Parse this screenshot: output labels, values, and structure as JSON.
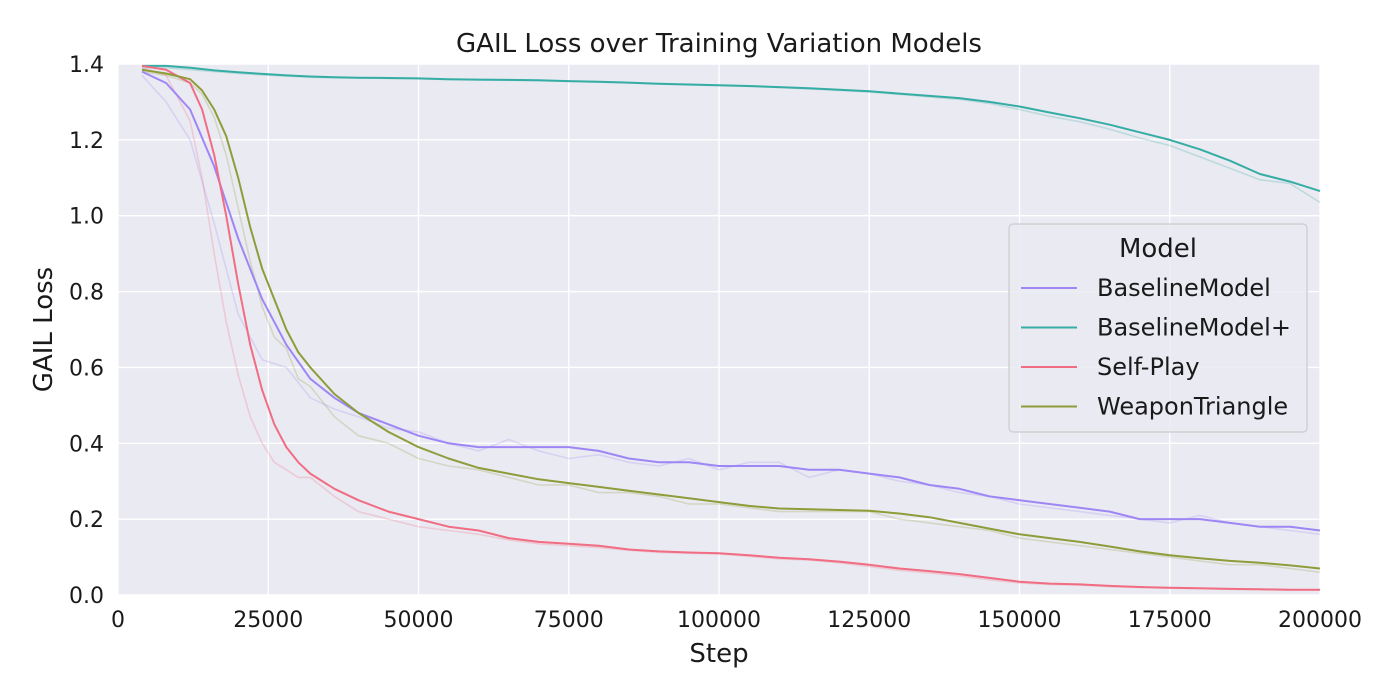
{
  "chart_data": {
    "type": "line",
    "title": "GAIL Loss over Training Variation Models",
    "xlabel": "Step",
    "ylabel": "GAIL Loss",
    "xlim": [
      0,
      200000
    ],
    "ylim": [
      0,
      1.4
    ],
    "xticks": [
      "0",
      "25000",
      "50000",
      "75000",
      "100000",
      "125000",
      "150000",
      "175000",
      "200000"
    ],
    "yticks": [
      "0.0",
      "0.2",
      "0.4",
      "0.6",
      "0.8",
      "1.0",
      "1.2",
      "1.4"
    ],
    "grid": true,
    "background": "#eaeaf2",
    "legend": {
      "title": "Model",
      "placement": "center-right"
    },
    "series": [
      {
        "name": "BaselineModel",
        "color": "#9f86f5",
        "x": [
          4000,
          8000,
          12000,
          16000,
          20000,
          24000,
          28000,
          32000,
          36000,
          40000,
          45000,
          50000,
          55000,
          60000,
          65000,
          70000,
          75000,
          80000,
          85000,
          90000,
          95000,
          100000,
          105000,
          110000,
          115000,
          120000,
          125000,
          130000,
          135000,
          140000,
          145000,
          150000,
          155000,
          160000,
          165000,
          170000,
          175000,
          180000,
          185000,
          190000,
          195000,
          200000
        ],
        "smoothed": [
          1.38,
          1.35,
          1.28,
          1.13,
          0.94,
          0.78,
          0.66,
          0.57,
          0.52,
          0.48,
          0.45,
          0.42,
          0.4,
          0.39,
          0.39,
          0.39,
          0.39,
          0.38,
          0.36,
          0.35,
          0.35,
          0.34,
          0.34,
          0.34,
          0.33,
          0.33,
          0.32,
          0.31,
          0.29,
          0.28,
          0.26,
          0.25,
          0.24,
          0.23,
          0.22,
          0.2,
          0.2,
          0.2,
          0.19,
          0.18,
          0.18,
          0.17
        ],
        "raw": [
          1.37,
          1.3,
          1.2,
          0.98,
          0.74,
          0.62,
          0.6,
          0.52,
          0.49,
          0.47,
          0.44,
          0.43,
          0.4,
          0.38,
          0.41,
          0.38,
          0.36,
          0.37,
          0.35,
          0.34,
          0.36,
          0.33,
          0.35,
          0.35,
          0.31,
          0.33,
          0.32,
          0.3,
          0.29,
          0.27,
          0.26,
          0.24,
          0.23,
          0.22,
          0.21,
          0.2,
          0.19,
          0.21,
          0.19,
          0.18,
          0.17,
          0.16
        ]
      },
      {
        "name": "BaselineModel+",
        "color": "#36ada4",
        "x": [
          4000,
          8000,
          12000,
          16000,
          20000,
          24000,
          28000,
          32000,
          36000,
          40000,
          45000,
          50000,
          55000,
          60000,
          65000,
          70000,
          75000,
          80000,
          85000,
          90000,
          95000,
          100000,
          105000,
          110000,
          115000,
          120000,
          125000,
          130000,
          135000,
          140000,
          145000,
          150000,
          155000,
          160000,
          165000,
          170000,
          175000,
          180000,
          185000,
          190000,
          195000,
          200000
        ],
        "smoothed": [
          1.395,
          1.395,
          1.39,
          1.383,
          1.378,
          1.374,
          1.37,
          1.367,
          1.365,
          1.364,
          1.363,
          1.362,
          1.36,
          1.359,
          1.358,
          1.357,
          1.355,
          1.353,
          1.351,
          1.348,
          1.346,
          1.344,
          1.342,
          1.339,
          1.336,
          1.332,
          1.328,
          1.322,
          1.316,
          1.31,
          1.3,
          1.288,
          1.272,
          1.257,
          1.24,
          1.22,
          1.2,
          1.175,
          1.145,
          1.11,
          1.09,
          1.065
        ],
        "raw": [
          1.39,
          1.39,
          1.385,
          1.38,
          1.375,
          1.371,
          1.368,
          1.365,
          1.364,
          1.363,
          1.362,
          1.361,
          1.359,
          1.358,
          1.357,
          1.356,
          1.354,
          1.352,
          1.35,
          1.347,
          1.345,
          1.343,
          1.341,
          1.338,
          1.334,
          1.33,
          1.326,
          1.32,
          1.313,
          1.307,
          1.296,
          1.28,
          1.262,
          1.248,
          1.228,
          1.205,
          1.185,
          1.155,
          1.125,
          1.095,
          1.085,
          1.035
        ]
      },
      {
        "name": "Self-Play",
        "color": "#f16d83",
        "x": [
          4000,
          8000,
          12000,
          14000,
          16000,
          18000,
          20000,
          22000,
          24000,
          26000,
          28000,
          30000,
          32000,
          36000,
          40000,
          45000,
          50000,
          55000,
          60000,
          65000,
          70000,
          75000,
          80000,
          85000,
          90000,
          95000,
          100000,
          105000,
          110000,
          115000,
          120000,
          125000,
          130000,
          135000,
          140000,
          145000,
          150000,
          155000,
          160000,
          165000,
          170000,
          175000,
          180000,
          185000,
          190000,
          195000,
          200000
        ],
        "smoothed": [
          1.395,
          1.385,
          1.35,
          1.28,
          1.16,
          1.0,
          0.82,
          0.66,
          0.54,
          0.45,
          0.39,
          0.35,
          0.32,
          0.28,
          0.25,
          0.22,
          0.2,
          0.18,
          0.17,
          0.15,
          0.14,
          0.135,
          0.13,
          0.12,
          0.115,
          0.112,
          0.11,
          0.105,
          0.098,
          0.094,
          0.088,
          0.08,
          0.07,
          0.063,
          0.055,
          0.045,
          0.035,
          0.03,
          0.028,
          0.024,
          0.021,
          0.019,
          0.018,
          0.016,
          0.015,
          0.014,
          0.014
        ],
        "raw": [
          1.39,
          1.37,
          1.25,
          1.1,
          0.9,
          0.72,
          0.58,
          0.47,
          0.4,
          0.35,
          0.33,
          0.31,
          0.31,
          0.26,
          0.22,
          0.2,
          0.18,
          0.17,
          0.16,
          0.145,
          0.135,
          0.13,
          0.125,
          0.118,
          0.112,
          0.11,
          0.108,
          0.102,
          0.095,
          0.092,
          0.085,
          0.075,
          0.065,
          0.058,
          0.05,
          0.04,
          0.032,
          0.028,
          0.026,
          0.022,
          0.02,
          0.018,
          0.017,
          0.015,
          0.014,
          0.013,
          0.013
        ]
      },
      {
        "name": "WeaponTriangle",
        "color": "#8e9c3a",
        "x": [
          4000,
          8000,
          12000,
          14000,
          16000,
          18000,
          20000,
          22000,
          24000,
          26000,
          28000,
          30000,
          32000,
          36000,
          40000,
          45000,
          50000,
          55000,
          60000,
          65000,
          70000,
          75000,
          80000,
          85000,
          90000,
          95000,
          100000,
          105000,
          110000,
          115000,
          120000,
          125000,
          130000,
          135000,
          140000,
          145000,
          150000,
          155000,
          160000,
          165000,
          170000,
          175000,
          180000,
          185000,
          190000,
          195000,
          200000
        ],
        "smoothed": [
          1.385,
          1.375,
          1.36,
          1.33,
          1.28,
          1.21,
          1.1,
          0.97,
          0.86,
          0.78,
          0.7,
          0.64,
          0.6,
          0.53,
          0.48,
          0.43,
          0.39,
          0.36,
          0.335,
          0.32,
          0.305,
          0.295,
          0.285,
          0.275,
          0.265,
          0.255,
          0.245,
          0.235,
          0.228,
          0.226,
          0.224,
          0.222,
          0.215,
          0.205,
          0.19,
          0.175,
          0.16,
          0.15,
          0.14,
          0.128,
          0.115,
          0.105,
          0.097,
          0.09,
          0.085,
          0.078,
          0.07
        ],
        "raw": [
          1.38,
          1.37,
          1.35,
          1.32,
          1.26,
          1.16,
          1.02,
          0.88,
          0.76,
          0.68,
          0.65,
          0.57,
          0.55,
          0.47,
          0.42,
          0.4,
          0.36,
          0.34,
          0.33,
          0.31,
          0.29,
          0.29,
          0.27,
          0.27,
          0.26,
          0.24,
          0.24,
          0.23,
          0.22,
          0.22,
          0.22,
          0.22,
          0.2,
          0.19,
          0.18,
          0.17,
          0.15,
          0.14,
          0.13,
          0.12,
          0.11,
          0.1,
          0.09,
          0.08,
          0.08,
          0.07,
          0.06
        ]
      }
    ]
  }
}
